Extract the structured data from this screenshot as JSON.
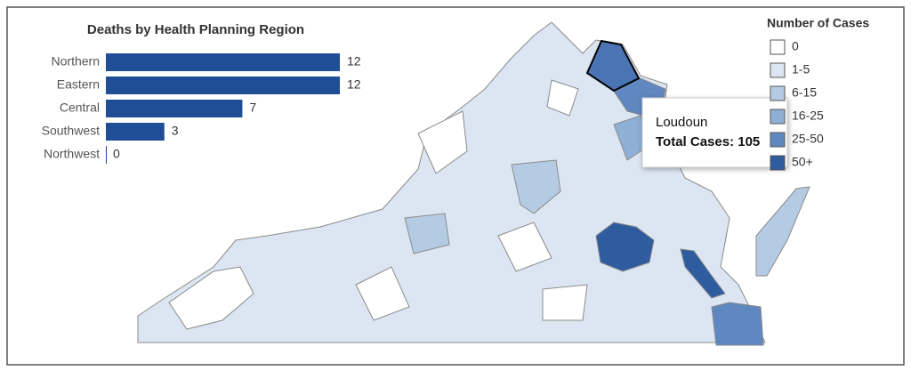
{
  "chart_data": {
    "type": "hbar",
    "title": "Deaths by Health Planning Region",
    "categories": [
      "Northern",
      "Eastern",
      "Central",
      "Southwest",
      "Northwest"
    ],
    "values": [
      12,
      12,
      7,
      3,
      0
    ],
    "color": "#1f4e96"
  },
  "map": {
    "legend_title": "Number of Cases",
    "legend_items": [
      {
        "label": "0",
        "color": "#ffffff"
      },
      {
        "label": "1-5",
        "color": "#dce6f2"
      },
      {
        "label": "6-15",
        "color": "#b5cbe4"
      },
      {
        "label": "16-25",
        "color": "#8eafd6"
      },
      {
        "label": "25-50",
        "color": "#5f88c0"
      },
      {
        "label": "50+",
        "color": "#2f5c9f"
      }
    ],
    "tooltip": {
      "title": "Loudoun",
      "text": "Total Cases: 105"
    }
  }
}
